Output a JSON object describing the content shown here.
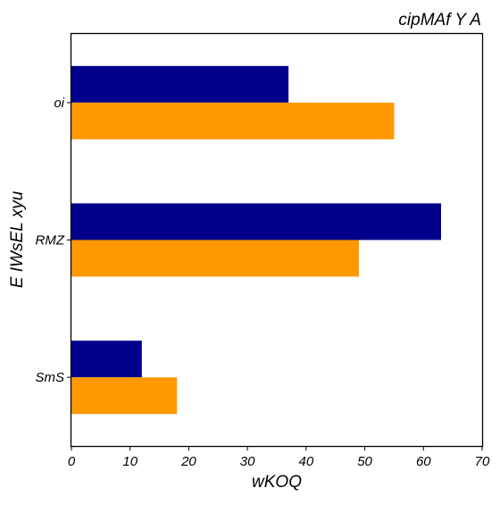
{
  "chart_data": {
    "type": "bar",
    "orientation": "horizontal",
    "title": "cipMAf Y A",
    "xlabel": "wKOQ",
    "ylabel": "E IWsEL xyu",
    "categories": [
      "oi",
      "RMZ",
      "SmS"
    ],
    "series": [
      {
        "values": [
          37,
          63,
          12
        ],
        "color": "#00008b"
      },
      {
        "values": [
          55,
          49,
          18
        ],
        "color": "#ff9900"
      }
    ],
    "xlim": [
      0,
      70
    ],
    "xticks": [
      "0",
      "10",
      "20",
      "30",
      "40",
      "50",
      "60",
      "70"
    ],
    "grid": false,
    "legend": "none"
  }
}
